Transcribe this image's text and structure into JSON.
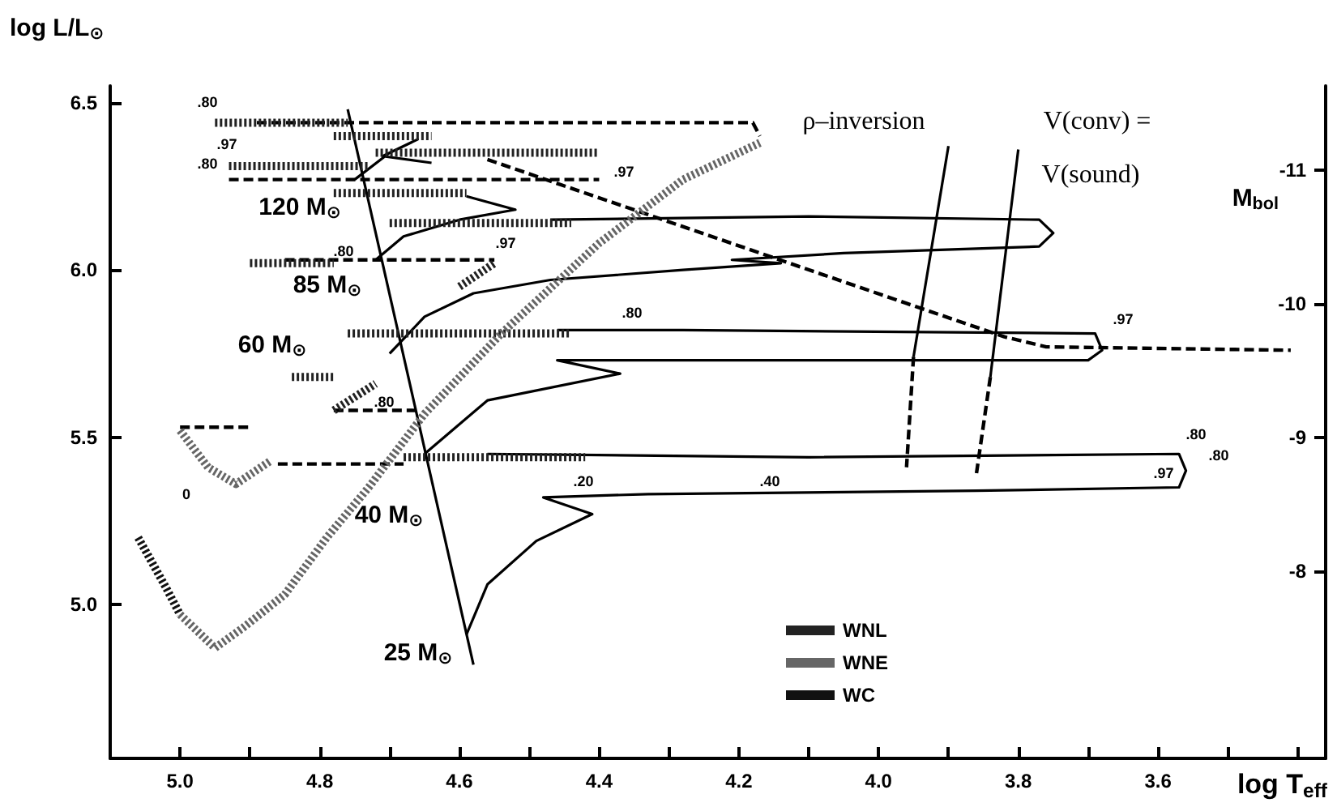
{
  "chart_data": {
    "type": "line",
    "xlabel": "log T$_{eff}$",
    "ylabel": "log L/L$_{⊙}$",
    "y2label": "M$_{bol}$",
    "xlim": [
      5.1,
      3.36
    ],
    "ylim": [
      4.54,
      6.55
    ],
    "y2lim": [
      -6.6,
      -11.63
    ],
    "xticks": [
      {
        "value": 5.0,
        "label": "5.0"
      },
      {
        "value": 4.9,
        "label": null
      },
      4.8,
      {
        "value": 4.7,
        "label": null
      },
      4.6,
      {
        "value": 4.5,
        "label": null
      },
      4.4,
      {
        "value": 4.3,
        "label": null
      },
      4.2,
      {
        "value": 4.1,
        "label": null
      },
      {
        "value": 4.0,
        "label": "4.0"
      },
      {
        "value": 3.9,
        "label": null
      },
      3.8,
      {
        "value": 3.7,
        "label": null
      },
      3.6,
      {
        "value": 3.5,
        "label": null
      },
      {
        "value": 3.4,
        "label": null
      }
    ],
    "yticks": [
      {
        "value": 5.0,
        "label": "5.0"
      },
      5.5,
      {
        "value": 6.0,
        "label": "6.0"
      },
      6.5
    ],
    "y2ticks": [
      -11,
      -10,
      -9,
      -8
    ],
    "marker": "none",
    "legend": "bottom",
    "series": [
      {
        "line_style": "solid",
        "color": "#000000",
        "x": [
          4.76,
          4.58
        ],
        "values": [
          6.48,
          4.82
        ]
      },
      {
        "line_style": "solid",
        "color": "#000000",
        "x": [
          4.75,
          4.7,
          4.66,
          4.71,
          4.64
        ],
        "values": [
          6.27,
          6.35,
          6.39,
          6.34,
          6.32
        ]
      },
      {
        "line_style": "solid",
        "color": "#000000",
        "x": [
          4.72,
          4.68,
          4.6,
          4.52,
          4.59
        ],
        "values": [
          6.03,
          6.1,
          6.15,
          6.18,
          6.22
        ]
      },
      {
        "line_style": "solid",
        "color": "#000000",
        "x": [
          4.7,
          4.65,
          4.58,
          4.47,
          4.28,
          4.14,
          4.21,
          4.05,
          3.77,
          3.75,
          3.77,
          4.1,
          4.47
        ],
        "values": [
          5.75,
          5.86,
          5.93,
          5.97,
          6.0,
          6.02,
          6.03,
          6.05,
          6.07,
          6.11,
          6.15,
          6.16,
          6.15
        ]
      },
      {
        "line_style": "solid",
        "color": "#000000",
        "x": [
          4.65,
          4.56,
          4.37,
          4.46,
          4.28,
          3.7,
          3.68,
          3.69,
          4.28,
          4.46
        ],
        "values": [
          5.45,
          5.61,
          5.69,
          5.73,
          5.73,
          5.73,
          5.76,
          5.81,
          5.82,
          5.82
        ]
      },
      {
        "line_style": "solid",
        "color": "#000000",
        "x": [
          4.59,
          4.56,
          4.49,
          4.41,
          4.48,
          4.33,
          3.86,
          3.57,
          3.56,
          3.57,
          4.1,
          4.56
        ],
        "values": [
          4.91,
          5.06,
          5.19,
          5.27,
          5.32,
          5.33,
          5.34,
          5.35,
          5.4,
          5.45,
          5.44,
          5.45
        ]
      },
      {
        "line_style": "solid",
        "color": "#000000",
        "x": [
          3.9,
          3.95
        ],
        "values": [
          6.37,
          5.74
        ]
      },
      {
        "line_style": "dashed",
        "color": "#000000",
        "x": [
          3.95,
          3.96
        ],
        "values": [
          5.74,
          5.41
        ]
      },
      {
        "line_style": "solid",
        "color": "#000000",
        "x": [
          3.8,
          3.84
        ],
        "values": [
          6.36,
          5.68
        ]
      },
      {
        "line_style": "dashed",
        "color": "#000000",
        "x": [
          3.84,
          3.86
        ],
        "values": [
          5.68,
          5.39
        ]
      },
      {
        "line_style": "dashed",
        "color": "#000000",
        "x": [
          4.56,
          3.96,
          3.82,
          3.76,
          3.41
        ],
        "values": [
          6.33,
          5.9,
          5.8,
          5.77,
          5.76
        ]
      },
      {
        "line_style": "dashed",
        "color": "#000000",
        "x": [
          4.89,
          4.18,
          4.17
        ],
        "values": [
          6.44,
          6.44,
          6.4
        ]
      },
      {
        "line_style": "dashed",
        "color": "#000000",
        "x": [
          4.93,
          4.4
        ],
        "values": [
          6.27,
          6.27
        ]
      },
      {
        "line_style": "dashed",
        "color": "#000000",
        "x": [
          4.85,
          4.55
        ],
        "values": [
          6.03,
          6.03
        ]
      },
      {
        "line_style": "dashed",
        "color": "#000000",
        "x": [
          4.78,
          4.66
        ],
        "values": [
          5.58,
          5.58
        ]
      },
      {
        "line_style": "dashed",
        "color": "#000000",
        "x": [
          5.0,
          4.9
        ],
        "values": [
          5.53,
          5.53
        ]
      },
      {
        "line_style": "dashed",
        "color": "#000000",
        "x": [
          4.86,
          4.68
        ],
        "values": [
          5.42,
          5.42
        ]
      },
      {
        "name": "WNL",
        "line_style": "dotted",
        "color": "#222222",
        "x": [
          4.95,
          4.76
        ],
        "values": [
          6.44,
          6.44
        ]
      },
      {
        "line_style": "dotted",
        "color": "#222222",
        "x": [
          4.78,
          4.64
        ],
        "values": [
          6.4,
          6.4
        ]
      },
      {
        "line_style": "dotted",
        "color": "#222222",
        "x": [
          4.72,
          4.4
        ],
        "values": [
          6.35,
          6.35
        ]
      },
      {
        "line_style": "dotted",
        "color": "#222222",
        "x": [
          4.93,
          4.73
        ],
        "values": [
          6.31,
          6.31
        ]
      },
      {
        "line_style": "dotted",
        "color": "#222222",
        "x": [
          4.78,
          4.59
        ],
        "values": [
          6.23,
          6.23
        ]
      },
      {
        "line_style": "dotted",
        "color": "#222222",
        "x": [
          4.7,
          4.44
        ],
        "values": [
          6.14,
          6.14
        ]
      },
      {
        "line_style": "dotted",
        "color": "#222222",
        "x": [
          4.9,
          4.78
        ],
        "values": [
          6.02,
          6.02
        ]
      },
      {
        "line_style": "dotted",
        "color": "#222222",
        "x": [
          4.76,
          4.44
        ],
        "values": [
          5.81,
          5.81
        ]
      },
      {
        "line_style": "dotted",
        "color": "#222222",
        "x": [
          4.84,
          4.78
        ],
        "values": [
          5.68,
          5.68
        ]
      },
      {
        "line_style": "dotted",
        "color": "#222222",
        "x": [
          4.78,
          4.72
        ],
        "values": [
          5.58,
          5.66
        ]
      },
      {
        "line_style": "dotted",
        "color": "#222222",
        "x": [
          4.68,
          4.42
        ],
        "values": [
          5.44,
          5.44
        ]
      },
      {
        "line_style": "dotted",
        "color": "#222222",
        "x": [
          4.6,
          4.55
        ],
        "values": [
          5.95,
          6.02
        ]
      },
      {
        "name": "WNE",
        "line_style": "dotted",
        "color": "#666666",
        "x": [
          5.0,
          4.95,
          4.91,
          4.85,
          4.79,
          4.73,
          4.65,
          4.54,
          4.4,
          4.28,
          4.17
        ],
        "values": [
          4.97,
          4.87,
          4.93,
          5.03,
          5.2,
          5.35,
          5.57,
          5.81,
          6.08,
          6.27,
          6.38
        ]
      },
      {
        "line_style": "dotted",
        "color": "#666666",
        "x": [
          5.0,
          4.96,
          4.92,
          4.87
        ],
        "values": [
          5.52,
          5.41,
          5.36,
          5.43
        ]
      },
      {
        "name": "WC",
        "line_style": "dotted",
        "color": "#111111",
        "x": [
          5.06,
          5.02,
          5.0
        ],
        "values": [
          5.2,
          5.05,
          4.97
        ]
      }
    ],
    "annotations": [
      "120 M$_{⊙}$",
      "85 M$_{⊙}$",
      "60 M$_{⊙}$",
      "40 M$_{⊙}$",
      "25 M$_{⊙}$",
      ".80",
      ".80",
      ".80",
      ".80",
      ".80",
      ".80",
      ".80",
      ".97",
      ".97",
      ".97",
      ".97",
      ".97",
      ".20",
      ".40",
      "0",
      "ρ–inversion",
      "V(conv) =",
      "V(sound)"
    ]
  }
}
